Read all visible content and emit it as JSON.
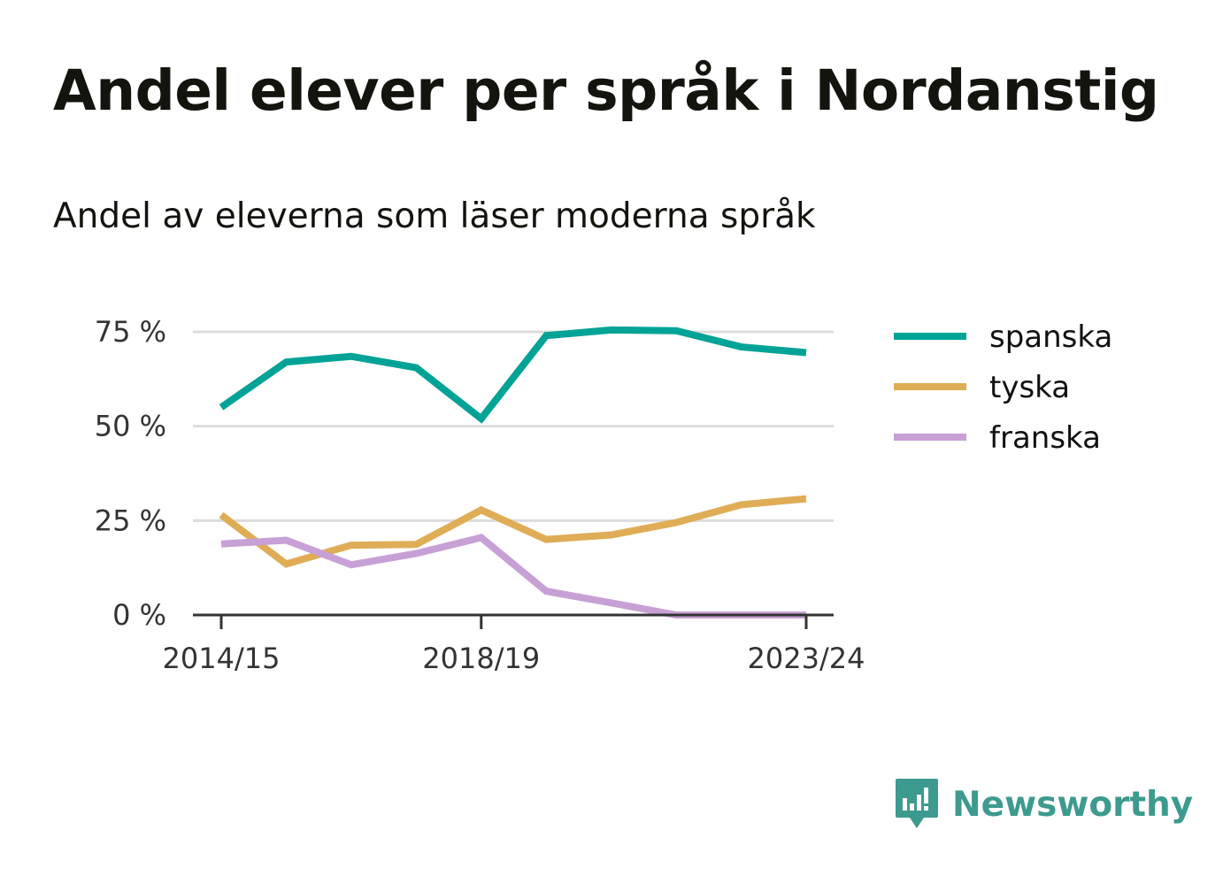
{
  "header": {
    "title": "Andel elever per språk i Nordanstig",
    "subtitle": "Andel av eleverna som läser moderna språk"
  },
  "chart_data": {
    "type": "line",
    "title": "Andel elever per språk i Nordanstig",
    "subtitle": "Andel av eleverna som läser moderna språk",
    "x": [
      "2014/15",
      "2015/16",
      "2016/17",
      "2017/18",
      "2018/19",
      "2019/20",
      "2020/21",
      "2021/22",
      "2022/23",
      "2023/24"
    ],
    "x_tick_labels": [
      "2014/15",
      "2018/19",
      "2023/24"
    ],
    "y_ticks": [
      0,
      25,
      50,
      75
    ],
    "y_tick_labels": [
      "0 %",
      "25 %",
      "50 %",
      "75 %"
    ],
    "ylim": [
      0,
      75
    ],
    "grid": true,
    "legend_position": "right",
    "series": [
      {
        "name": "spanska",
        "color": "#00a396",
        "values": [
          55,
          67,
          68.5,
          65.5,
          52,
          74,
          75.5,
          75.3,
          71,
          69.5
        ]
      },
      {
        "name": "tyska",
        "color": "#dfad56",
        "values": [
          26.5,
          13.5,
          18.5,
          18.7,
          27.8,
          20,
          21.2,
          24.5,
          29.2,
          30.8
        ]
      },
      {
        "name": "franska",
        "color": "#c7a0d6",
        "values": [
          18.8,
          19.8,
          13.3,
          16.3,
          20.5,
          6.3,
          3.2,
          0,
          0,
          0
        ]
      }
    ]
  },
  "brand": {
    "name": "Newsworthy",
    "icon": "newsworthy-logo-icon",
    "color": "#3d9a8f"
  }
}
